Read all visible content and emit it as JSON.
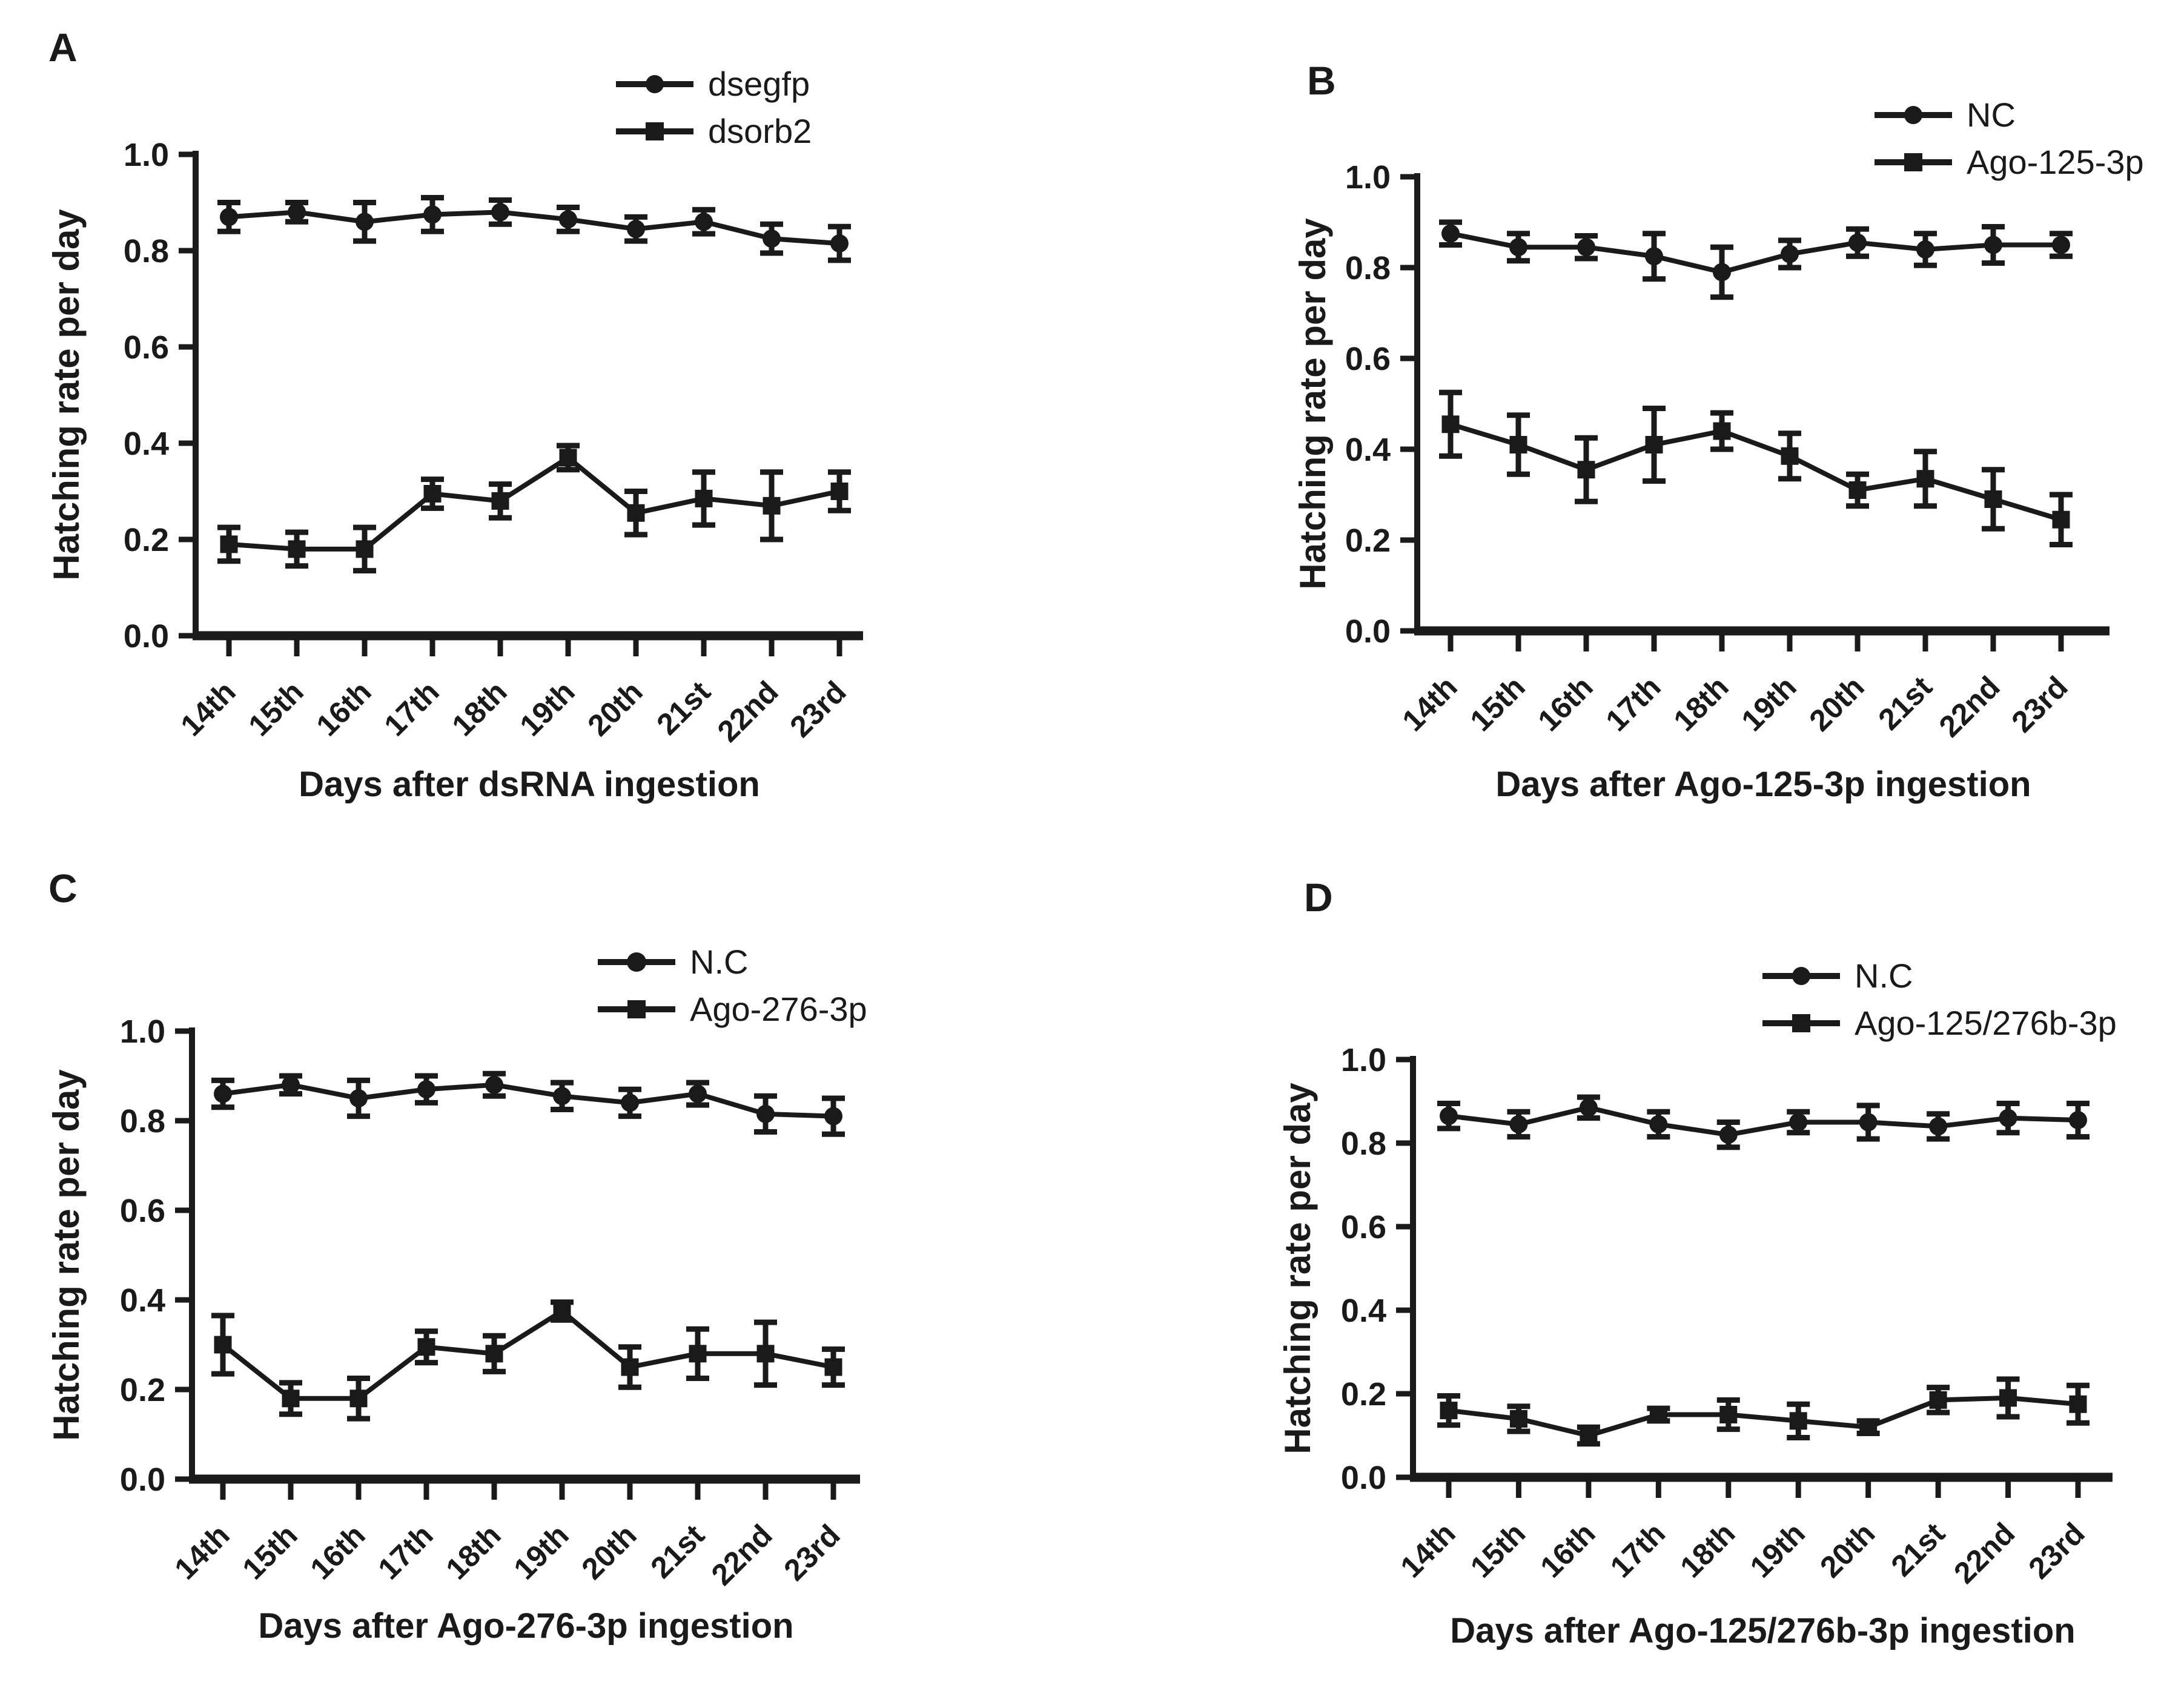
{
  "figure": {
    "background": "#ffffff",
    "ink_color": "#1a1a1a"
  },
  "chart_data": [
    {
      "type": "line",
      "panel_label": "A",
      "title": "",
      "xlabel": "Days after dsRNA ingestion",
      "ylabel": "Hatching rate per day",
      "categories": [
        "14th",
        "15th",
        "16th",
        "17th",
        "18th",
        "19th",
        "20th",
        "21st",
        "22nd",
        "23rd"
      ],
      "ylim": [
        0.0,
        1.0
      ],
      "yticks": [
        "0.0",
        "0.2",
        "0.4",
        "0.6",
        "0.8",
        "1.0"
      ],
      "grid": false,
      "legend_position": "top-right",
      "error_bars": true,
      "series": [
        {
          "name": "dsegfp",
          "marker": "circle",
          "values": [
            0.87,
            0.88,
            0.86,
            0.875,
            0.88,
            0.865,
            0.845,
            0.86,
            0.825,
            0.815
          ],
          "errors": [
            0.03,
            0.02,
            0.04,
            0.035,
            0.025,
            0.025,
            0.025,
            0.025,
            0.03,
            0.035
          ]
        },
        {
          "name": "dsorb2",
          "marker": "square",
          "values": [
            0.19,
            0.18,
            0.18,
            0.295,
            0.28,
            0.37,
            0.255,
            0.285,
            0.27,
            0.3
          ],
          "errors": [
            0.035,
            0.035,
            0.045,
            0.03,
            0.035,
            0.025,
            0.045,
            0.055,
            0.07,
            0.04
          ]
        }
      ]
    },
    {
      "type": "line",
      "panel_label": "B",
      "title": "",
      "xlabel": "Days after Ago-125-3p ingestion",
      "ylabel": "Hatching rate per day",
      "categories": [
        "14th",
        "15th",
        "16th",
        "17th",
        "18th",
        "19th",
        "20th",
        "21st",
        "22nd",
        "23rd"
      ],
      "ylim": [
        0.0,
        1.0
      ],
      "yticks": [
        "0.0",
        "0.2",
        "0.4",
        "0.6",
        "0.8",
        "1.0"
      ],
      "grid": false,
      "legend_position": "top-right",
      "error_bars": true,
      "series": [
        {
          "name": "NC",
          "marker": "circle",
          "values": [
            0.875,
            0.845,
            0.845,
            0.825,
            0.79,
            0.83,
            0.855,
            0.84,
            0.85,
            0.85
          ],
          "errors": [
            0.025,
            0.03,
            0.025,
            0.05,
            0.055,
            0.03,
            0.03,
            0.035,
            0.04,
            0.025
          ]
        },
        {
          "name": "Ago-125-3p",
          "marker": "square",
          "values": [
            0.455,
            0.41,
            0.355,
            0.41,
            0.44,
            0.385,
            0.31,
            0.335,
            0.29,
            0.245
          ],
          "errors": [
            0.07,
            0.065,
            0.07,
            0.08,
            0.04,
            0.05,
            0.035,
            0.06,
            0.065,
            0.055
          ]
        }
      ]
    },
    {
      "type": "line",
      "panel_label": "C",
      "title": "",
      "xlabel": "Days after Ago-276-3p ingestion",
      "ylabel": "Hatching rate per day",
      "categories": [
        "14th",
        "15th",
        "16th",
        "17th",
        "18th",
        "19th",
        "20th",
        "21st",
        "22nd",
        "23rd"
      ],
      "ylim": [
        0.0,
        1.0
      ],
      "yticks": [
        "0.0",
        "0.2",
        "0.4",
        "0.6",
        "0.8",
        "1.0"
      ],
      "grid": false,
      "legend_position": "top-right",
      "error_bars": true,
      "series": [
        {
          "name": "N.C",
          "marker": "circle",
          "values": [
            0.86,
            0.88,
            0.85,
            0.87,
            0.88,
            0.855,
            0.84,
            0.86,
            0.815,
            0.81
          ],
          "errors": [
            0.03,
            0.02,
            0.04,
            0.03,
            0.025,
            0.03,
            0.03,
            0.025,
            0.04,
            0.04
          ]
        },
        {
          "name": "Ago-276-3p",
          "marker": "square",
          "values": [
            0.3,
            0.18,
            0.18,
            0.295,
            0.28,
            0.375,
            0.25,
            0.28,
            0.28,
            0.25
          ],
          "errors": [
            0.065,
            0.035,
            0.045,
            0.035,
            0.04,
            0.02,
            0.045,
            0.055,
            0.07,
            0.04
          ]
        }
      ]
    },
    {
      "type": "line",
      "panel_label": "D",
      "title": "",
      "xlabel": "Days after Ago-125/276b-3p ingestion",
      "ylabel": "Hatching rate per day",
      "categories": [
        "14th",
        "15th",
        "16th",
        "17th",
        "18th",
        "19th",
        "20th",
        "21st",
        "22nd",
        "23rd"
      ],
      "ylim": [
        0.0,
        1.0
      ],
      "yticks": [
        "0.0",
        "0.2",
        "0.4",
        "0.6",
        "0.8",
        "1.0"
      ],
      "grid": false,
      "legend_position": "top-right",
      "error_bars": true,
      "series": [
        {
          "name": "N.C",
          "marker": "circle",
          "values": [
            0.865,
            0.845,
            0.885,
            0.845,
            0.82,
            0.85,
            0.85,
            0.84,
            0.86,
            0.855
          ],
          "errors": [
            0.03,
            0.03,
            0.025,
            0.03,
            0.03,
            0.025,
            0.04,
            0.03,
            0.035,
            0.04
          ]
        },
        {
          "name": "Ago-125/276b-3p",
          "marker": "square",
          "values": [
            0.16,
            0.14,
            0.1,
            0.15,
            0.15,
            0.135,
            0.12,
            0.185,
            0.19,
            0.175
          ],
          "errors": [
            0.035,
            0.03,
            0.02,
            0.015,
            0.035,
            0.04,
            0.015,
            0.03,
            0.045,
            0.045
          ]
        }
      ]
    }
  ]
}
